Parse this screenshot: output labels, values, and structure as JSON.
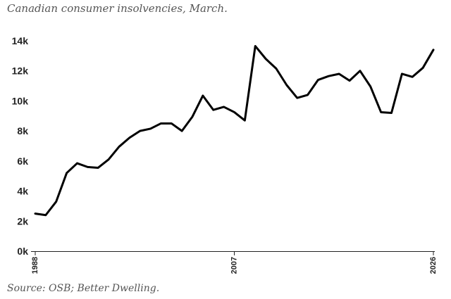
{
  "title": "Canadian consumer insolvencies, March.",
  "source": "Source: OSB; Better Dwelling.",
  "chart_data": {
    "type": "line",
    "title": "Canadian consumer insolvencies, March.",
    "xlabel": "",
    "ylabel": "",
    "x_range": [
      1988,
      2026
    ],
    "ylim": [
      0,
      14000
    ],
    "y_ticks": [
      0,
      2000,
      4000,
      6000,
      8000,
      10000,
      12000,
      14000
    ],
    "y_tick_labels": [
      "0k",
      "2k",
      "4k",
      "6k",
      "8k",
      "10k",
      "12k",
      "14k"
    ],
    "x_ticks": [
      1988,
      2007,
      2026
    ],
    "x_tick_labels": [
      "1988",
      "2007",
      "2026"
    ],
    "grid": false,
    "line_color": "#000000",
    "series": [
      {
        "x": [
          1988,
          1989,
          1990,
          1991,
          1992,
          1993,
          1994,
          1995,
          1996,
          1997,
          1998,
          1999,
          2000,
          2001,
          2002,
          2003,
          2004,
          2005,
          2006,
          2007,
          2008,
          2009,
          2010,
          2011,
          2012,
          2013,
          2014,
          2015,
          2016,
          2017,
          2018,
          2019,
          2020,
          2021,
          2022,
          2023,
          2024,
          2025,
          2026
        ],
        "values": [
          2500,
          2400,
          3300,
          5200,
          5850,
          5600,
          5550,
          6100,
          6950,
          7550,
          8000,
          8150,
          8500,
          8500,
          8000,
          8950,
          10350,
          9400,
          9600,
          9250,
          8700,
          13650,
          12800,
          12150,
          11050,
          10200,
          10400,
          11400,
          11650,
          11800,
          11350,
          12000,
          10950,
          9250,
          9200,
          11800,
          11600,
          12200,
          13400
        ]
      }
    ]
  }
}
